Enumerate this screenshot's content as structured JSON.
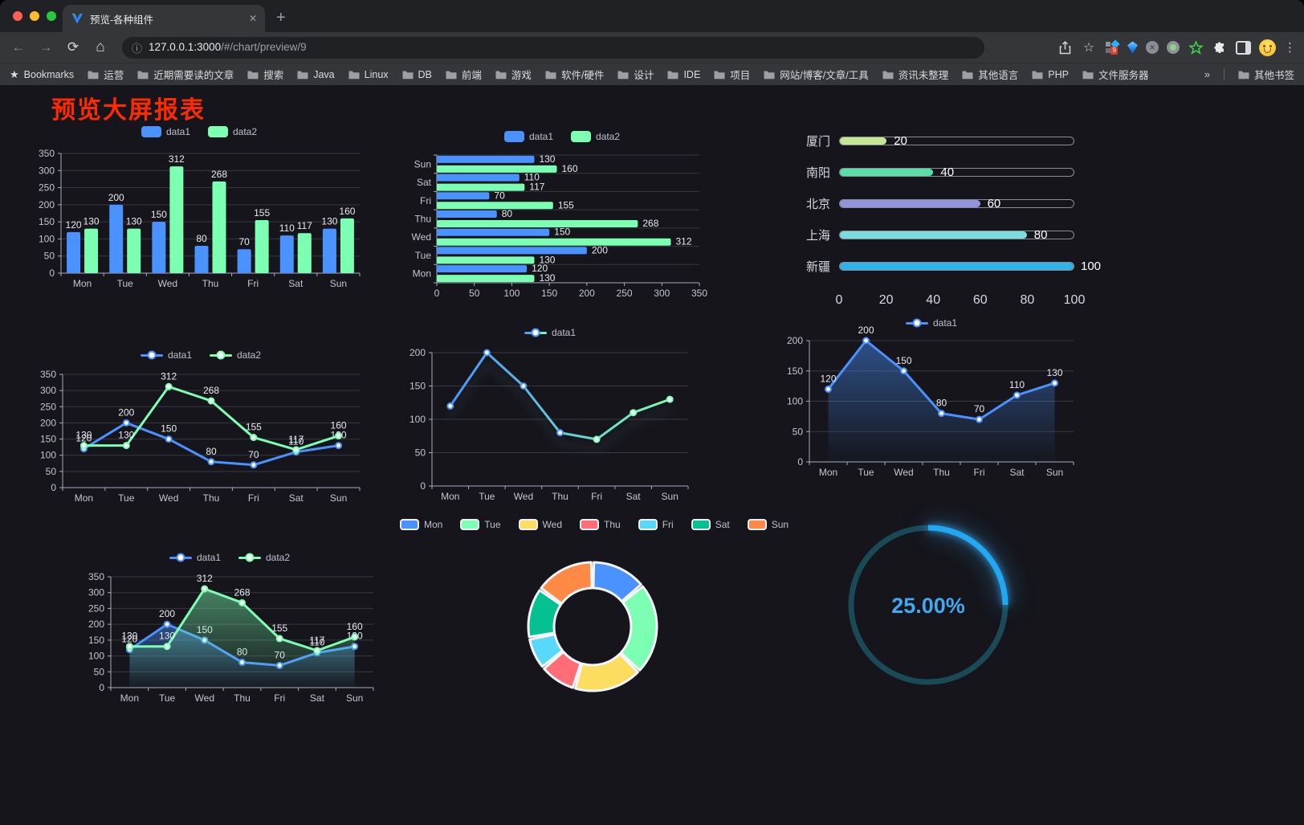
{
  "browser": {
    "tab": {
      "title": "预览-各种组件"
    },
    "url": {
      "host": "127.0.0.1:3000",
      "path": "/#/chart/preview/9"
    },
    "bookmarks_label": "Bookmarks",
    "bookmarks": [
      "运营",
      "近期需要读的文章",
      "搜索",
      "Java",
      "Linux",
      "DB",
      "前端",
      "游戏",
      "软件/硬件",
      "设计",
      "IDE",
      "项目",
      "网站/博客/文章/工具",
      "资讯未整理",
      "其他语言",
      "PHP",
      "文件服务器"
    ],
    "bookmarks_overflow": "»",
    "other_bookmarks": "其他书签",
    "extension_badge": "9"
  },
  "icons": {
    "back": "←",
    "forward": "→",
    "reload": "⟳",
    "home": "⌂",
    "info": "ⓘ",
    "star": "☆",
    "close": "✕",
    "new_tab": "+",
    "more": "⋮",
    "bookmark_star": "★",
    "circle_x": "✕"
  },
  "page": {
    "title": "预览大屏报表",
    "title_color": "#ff2b00"
  },
  "palette": {
    "series_blue": "#4992ff",
    "series_green": "#7cffb2",
    "background": "#15151b",
    "axis_label": "#c4c5d2",
    "value_label": "#e9eaf1"
  },
  "chart_data": [
    {
      "id": "grouped-bar",
      "type": "bar",
      "legend": "rect",
      "labels": true,
      "categories": [
        "Mon",
        "Tue",
        "Wed",
        "Thu",
        "Fri",
        "Sat",
        "Sun"
      ],
      "ylim": [
        0,
        350
      ],
      "ystep": 50,
      "series": [
        {
          "name": "data1",
          "color": "#4992ff",
          "values": [
            120,
            200,
            150,
            80,
            70,
            110,
            130
          ]
        },
        {
          "name": "data2",
          "color": "#7cffb2",
          "values": [
            130,
            130,
            312,
            268,
            155,
            117,
            160
          ]
        }
      ]
    },
    {
      "id": "horizontal-bar",
      "type": "hbar",
      "legend": "rect",
      "labels": true,
      "categories": [
        "Mon",
        "Tue",
        "Wed",
        "Thu",
        "Fri",
        "Sat",
        "Sun"
      ],
      "xlim": [
        0,
        350
      ],
      "xstep": 50,
      "series": [
        {
          "name": "data1",
          "color": "#4992ff",
          "values": [
            120,
            200,
            150,
            80,
            70,
            110,
            130
          ]
        },
        {
          "name": "data2",
          "color": "#7cffb2",
          "values": [
            130,
            130,
            312,
            268,
            155,
            117,
            160
          ]
        }
      ]
    },
    {
      "id": "city-progress",
      "type": "progress",
      "max": 100,
      "xticks": [
        0,
        20,
        40,
        60,
        80,
        100
      ],
      "rows": [
        {
          "label": "厦门",
          "value": 20,
          "color": "#c5e793"
        },
        {
          "label": "南阳",
          "value": 40,
          "color": "#57dfa7"
        },
        {
          "label": "北京",
          "value": 60,
          "color": "#9193de"
        },
        {
          "label": "上海",
          "value": 80,
          "color": "#7bdce0"
        },
        {
          "label": "新疆",
          "value": 100,
          "color": "#2fb3e8"
        }
      ]
    },
    {
      "id": "multi-line",
      "type": "line",
      "legend": "line",
      "labels": true,
      "markers": true,
      "categories": [
        "Mon",
        "Tue",
        "Wed",
        "Thu",
        "Fri",
        "Sat",
        "Sun"
      ],
      "ylim": [
        0,
        350
      ],
      "ystep": 50,
      "series": [
        {
          "name": "data1",
          "color": "#4992ff",
          "values": [
            120,
            200,
            150,
            80,
            70,
            110,
            130
          ]
        },
        {
          "name": "data2",
          "color": "#7cffb2",
          "values": [
            130,
            130,
            312,
            268,
            155,
            117,
            160
          ]
        }
      ]
    },
    {
      "id": "gradient-line",
      "type": "line",
      "legend": "line",
      "labels": false,
      "markers": true,
      "shadow": true,
      "categories": [
        "Mon",
        "Tue",
        "Wed",
        "Thu",
        "Fri",
        "Sat",
        "Sun"
      ],
      "ylim": [
        0,
        200
      ],
      "ystep": 50,
      "series": [
        {
          "name": "data1",
          "color": "#4992ff",
          "color2": "#7cffb2",
          "values": [
            120,
            200,
            150,
            80,
            70,
            110,
            130
          ]
        }
      ]
    },
    {
      "id": "area-line",
      "type": "area",
      "legend": "line",
      "labels": true,
      "markers": true,
      "categories": [
        "Mon",
        "Tue",
        "Wed",
        "Thu",
        "Fri",
        "Sat",
        "Sun"
      ],
      "ylim": [
        0,
        200
      ],
      "ystep": 50,
      "series": [
        {
          "name": "data1",
          "color": "#4992ff",
          "values": [
            120,
            200,
            150,
            80,
            70,
            110,
            130
          ]
        }
      ]
    },
    {
      "id": "double-area",
      "type": "area",
      "legend": "line",
      "labels": true,
      "markers": true,
      "categories": [
        "Mon",
        "Tue",
        "Wed",
        "Thu",
        "Fri",
        "Sat",
        "Sun"
      ],
      "ylim": [
        0,
        350
      ],
      "ystep": 50,
      "series": [
        {
          "name": "data1",
          "color": "#4992ff",
          "values": [
            120,
            200,
            150,
            80,
            70,
            110,
            130
          ]
        },
        {
          "name": "data2",
          "color": "#7cffb2",
          "values": [
            130,
            130,
            312,
            268,
            155,
            117,
            160
          ]
        }
      ]
    },
    {
      "id": "donut",
      "type": "pie",
      "categories": [
        "Mon",
        "Tue",
        "Wed",
        "Thu",
        "Fri",
        "Sat",
        "Sun"
      ],
      "values": [
        120,
        200,
        150,
        80,
        70,
        110,
        130
      ],
      "colors": [
        "#4992ff",
        "#7cffb2",
        "#fddd60",
        "#ff6e76",
        "#58d9f9",
        "#05c091",
        "#ff8a45"
      ]
    },
    {
      "id": "ring-progress",
      "type": "gauge",
      "value": 25,
      "label": "25.00%",
      "track_color": "#1b4a57",
      "progress_color": "#22a7f2",
      "text_color": "#3fa9f1"
    }
  ]
}
